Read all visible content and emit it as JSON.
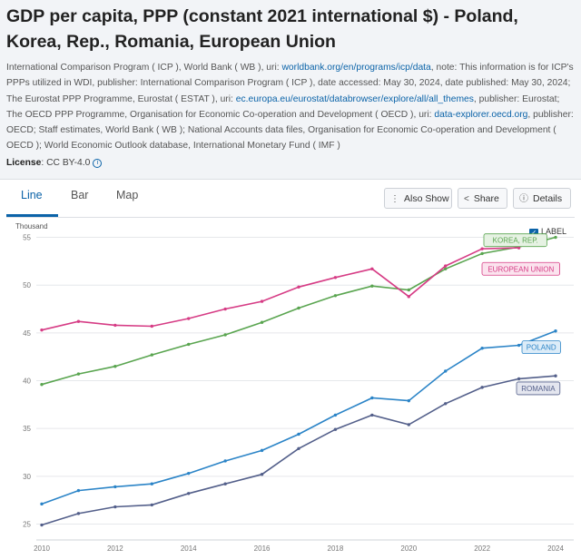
{
  "page": {
    "title": "GDP per capita, PPP (constant 2021 international $) - Poland, Korea, Rep., Romania, European Union",
    "source_1": "International Comparison Program ( ICP ), World Bank ( WB ), uri: ",
    "link_1": "worldbank.org/en/programs/icp/data",
    "source_2": ", note: This information is for ICP's PPPs utilized in WDI, publisher: International Comparison Program ( ICP ), date accessed: May 30, 2024, date published: May 30, 2024; The Eurostat PPP Programme, Eurostat ( ESTAT ), uri: ",
    "link_2": "ec.europa.eu/eurostat/databrowser/explore/all/all_themes",
    "source_3": ", publisher: Eurostat; The OECD PPP Programme, Organisation for Economic Co-operation and Development ( OECD ), uri: ",
    "link_3": "data-explorer.oecd.org",
    "source_4": ", publisher: OECD; Staff estimates, World Bank ( WB ); National Accounts data files, Organisation for Economic Co-operation and Development ( OECD ); World Economic Outlook database, International Monetary Fund ( IMF )",
    "license_label": "License",
    "license_value": ": CC BY-4.0"
  },
  "tabs": [
    {
      "label": "Line"
    },
    {
      "label": "Bar"
    },
    {
      "label": "Map"
    }
  ],
  "actions": {
    "also_show": "Also Show",
    "share": "Share",
    "details": "Details"
  },
  "label_toggle": "LABEL",
  "colors": {
    "korea": "#5aa550",
    "eu": "#d63c85",
    "poland": "#2b84c7",
    "romania": "#535f8a"
  },
  "chart_data": {
    "type": "line",
    "ylabel": "Thousand",
    "ylim": [
      24,
      56
    ],
    "yticks": [
      25,
      30,
      35,
      40,
      45,
      50,
      55
    ],
    "xlim": [
      2010,
      2024
    ],
    "xticks": [
      2010,
      2012,
      2014,
      2016,
      2018,
      2020,
      2022,
      2024
    ],
    "x": [
      2010,
      2011,
      2012,
      2013,
      2014,
      2015,
      2016,
      2017,
      2018,
      2019,
      2020,
      2021,
      2022,
      2023,
      2024
    ],
    "series": [
      {
        "name": "KOREA, REP.",
        "key": "korea",
        "values": [
          39.6,
          40.7,
          41.5,
          42.7,
          43.8,
          44.8,
          46.1,
          47.6,
          48.9,
          49.9,
          49.5,
          51.7,
          53.3,
          54.0,
          55.0
        ]
      },
      {
        "name": "EUROPEAN UNION",
        "key": "eu",
        "values": [
          45.3,
          46.2,
          45.8,
          45.7,
          46.5,
          47.5,
          48.3,
          49.8,
          50.8,
          51.7,
          48.8,
          52.0,
          53.8,
          53.9,
          null
        ]
      },
      {
        "name": "POLAND",
        "key": "poland",
        "values": [
          27.1,
          28.5,
          28.9,
          29.2,
          30.3,
          31.6,
          32.7,
          34.4,
          36.4,
          38.2,
          37.9,
          41.0,
          43.4,
          43.7,
          45.2
        ]
      },
      {
        "name": "ROMANIA",
        "key": "romania",
        "values": [
          24.9,
          26.1,
          26.8,
          27.0,
          28.2,
          29.2,
          30.2,
          32.9,
          34.9,
          36.4,
          35.4,
          37.6,
          39.3,
          40.2,
          40.5
        ]
      }
    ]
  }
}
